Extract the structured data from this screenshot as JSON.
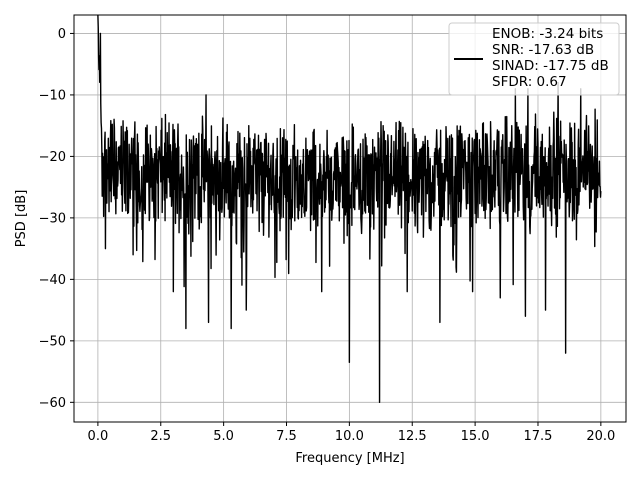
{
  "chart_data": {
    "type": "line",
    "xlabel": "Frequency [MHz]",
    "ylabel": "PSD [dB]",
    "xlim": [
      -0.95,
      21.0
    ],
    "ylim": [
      -63.2,
      3.0
    ],
    "xticks": [
      0.0,
      2.5,
      5.0,
      7.5,
      10.0,
      12.5,
      15.0,
      17.5,
      20.0
    ],
    "xtick_labels": [
      "0.0",
      "2.5",
      "5.0",
      "7.5",
      "10.0",
      "12.5",
      "15.0",
      "17.5",
      "20.0"
    ],
    "yticks": [
      0,
      -10,
      -20,
      -30,
      -40,
      -50,
      -60
    ],
    "ytick_labels": [
      "0",
      "−10",
      "−20",
      "−30",
      "−40",
      "−50",
      "−60"
    ],
    "grid": true,
    "legend_position": "top-right",
    "series": [
      {
        "line_color": "#000000",
        "legend_lines": [
          "ENOB: -3.24 bits",
          "SNR: -17.63 dB",
          "SINAD: -17.75 dB",
          "SFDR: 0.67"
        ],
        "approx_trace": {
          "x_range": [
            0.0,
            20.0
          ],
          "noise_floor_db": -22,
          "peak_near_dc_db": 0,
          "upper_envelope_db": -14,
          "lower_envelope_db": -35,
          "deep_nulls": [
            {
              "x": 0.3,
              "y": -35
            },
            {
              "x": 1.4,
              "y": -36
            },
            {
              "x": 3.0,
              "y": -42
            },
            {
              "x": 3.5,
              "y": -48
            },
            {
              "x": 4.4,
              "y": -47
            },
            {
              "x": 5.3,
              "y": -48
            },
            {
              "x": 5.9,
              "y": -45
            },
            {
              "x": 8.9,
              "y": -42
            },
            {
              "x": 10.0,
              "y": -53.5
            },
            {
              "x": 11.2,
              "y": -60
            },
            {
              "x": 12.3,
              "y": -42
            },
            {
              "x": 13.6,
              "y": -47
            },
            {
              "x": 14.9,
              "y": -42
            },
            {
              "x": 16.0,
              "y": -43
            },
            {
              "x": 17.0,
              "y": -46
            },
            {
              "x": 17.8,
              "y": -45
            },
            {
              "x": 18.6,
              "y": -52
            },
            {
              "x": 19.2,
              "y": -38
            }
          ],
          "spikes": [
            {
              "x": 0.1,
              "y": 0
            },
            {
              "x": 4.3,
              "y": -10
            },
            {
              "x": 16.6,
              "y": -9
            },
            {
              "x": 17.1,
              "y": -9
            },
            {
              "x": 18.3,
              "y": -8
            },
            {
              "x": 19.2,
              "y": -9
            }
          ]
        }
      }
    ]
  }
}
